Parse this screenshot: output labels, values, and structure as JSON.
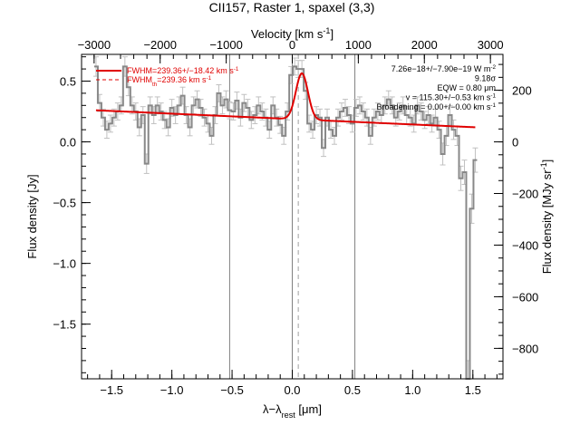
{
  "chart_data": {
    "type": "line",
    "title": "CII157, Raster 1, spaxel (3,3)",
    "xlabel": "λ−λ_rest [μm]",
    "ylabel": "Flux density [Jy]",
    "x2label": "Velocity [km s^-1]",
    "y2label": "Flux density [MJy sr^-1]",
    "xlim": [
      -1.75,
      1.75
    ],
    "ylim": [
      -1.95,
      0.72
    ],
    "x2lim": [
      -3190,
      3190
    ],
    "y2lim": [
      -918,
      339
    ],
    "xticks": [
      -1.5,
      -1.0,
      -0.5,
      0.0,
      0.5,
      1.0,
      1.5
    ],
    "xtick_labels": [
      "−1.5",
      "−1.0",
      "−0.5",
      "0.0",
      "0.5",
      "1.0",
      "1.5"
    ],
    "yticks": [
      -1.5,
      -1.0,
      -0.5,
      0.0,
      0.5
    ],
    "ytick_labels": [
      "−1.5",
      "−1.0",
      "−0.5",
      "0.0",
      "0.5"
    ],
    "x2ticks": [
      -3000,
      -2000,
      -1000,
      0,
      1000,
      2000,
      3000
    ],
    "x2tick_labels": [
      "−3000",
      "−2000",
      "−1000",
      "0",
      "1000",
      "2000",
      "3000"
    ],
    "y2ticks": [
      -800,
      -600,
      -400,
      -200,
      0,
      200
    ],
    "y2tick_labels": [
      "−800",
      "−600",
      "−400",
      "−200",
      "0",
      "200"
    ],
    "vlines": [
      -0.52,
      0.0,
      0.52
    ],
    "dashed_vline": 0.05,
    "series": [
      {
        "name": "Spectrum",
        "style": "step",
        "color": "#888888",
        "x": [
          -1.63,
          -1.6,
          -1.57,
          -1.54,
          -1.51,
          -1.48,
          -1.45,
          -1.42,
          -1.39,
          -1.36,
          -1.33,
          -1.3,
          -1.27,
          -1.24,
          -1.21,
          -1.18,
          -1.15,
          -1.12,
          -1.09,
          -1.06,
          -1.03,
          -1.0,
          -0.97,
          -0.94,
          -0.91,
          -0.88,
          -0.85,
          -0.82,
          -0.79,
          -0.76,
          -0.73,
          -0.7,
          -0.67,
          -0.64,
          -0.61,
          -0.58,
          -0.55,
          -0.52,
          -0.49,
          -0.46,
          -0.43,
          -0.4,
          -0.37,
          -0.34,
          -0.31,
          -0.28,
          -0.25,
          -0.22,
          -0.19,
          -0.16,
          -0.13,
          -0.1,
          -0.07,
          -0.04,
          -0.01,
          0.02,
          0.05,
          0.08,
          0.11,
          0.14,
          0.17,
          0.2,
          0.23,
          0.26,
          0.29,
          0.32,
          0.35,
          0.38,
          0.41,
          0.44,
          0.47,
          0.5,
          0.53,
          0.56,
          0.59,
          0.62,
          0.65,
          0.68,
          0.71,
          0.74,
          0.77,
          0.8,
          0.83,
          0.86,
          0.89,
          0.92,
          0.95,
          0.98,
          1.01,
          1.04,
          1.07,
          1.1,
          1.13,
          1.16,
          1.19,
          1.22,
          1.25,
          1.28,
          1.31,
          1.34,
          1.37,
          1.4,
          1.43,
          1.46,
          1.49,
          1.52
        ],
        "values": [
          0.62,
          0.32,
          0.2,
          0.1,
          0.15,
          0.2,
          0.25,
          0.3,
          0.62,
          0.45,
          0.3,
          0.25,
          0.12,
          0.22,
          -0.18,
          0.3,
          0.22,
          0.3,
          0.25,
          0.18,
          0.12,
          0.28,
          0.22,
          0.3,
          0.38,
          0.22,
          0.12,
          0.3,
          0.35,
          0.28,
          0.2,
          0.15,
          0.05,
          0.22,
          0.4,
          0.3,
          0.35,
          0.26,
          0.25,
          0.34,
          0.2,
          0.32,
          0.28,
          0.18,
          0.22,
          0.3,
          0.25,
          0.2,
          0.1,
          0.3,
          0.2,
          0.14,
          0.05,
          0.25,
          0.55,
          0.62,
          0.6,
          0.6,
          0.42,
          0.15,
          0.1,
          0.22,
          0.2,
          -0.05,
          0.2,
          0.1,
          0.05,
          0.2,
          0.25,
          0.28,
          0.22,
          0.15,
          0.28,
          0.3,
          0.25,
          0.2,
          0.05,
          0.2,
          0.25,
          0.22,
          0.3,
          0.35,
          0.3,
          0.2,
          0.25,
          0.3,
          0.22,
          0.2,
          0.15,
          0.3,
          0.25,
          0.18,
          0.22,
          0.15,
          0.2,
          0.1,
          -0.1,
          0.05,
          0.22,
          0.1,
          0.05,
          -0.3,
          -0.25,
          -1.95,
          -0.55,
          -0.15
        ],
        "errors": [
          0.08,
          0.07,
          0.07,
          0.07,
          0.07,
          0.07,
          0.07,
          0.07,
          0.08,
          0.07,
          0.07,
          0.07,
          0.07,
          0.07,
          0.08,
          0.07,
          0.07,
          0.07,
          0.07,
          0.07,
          0.07,
          0.07,
          0.07,
          0.07,
          0.07,
          0.07,
          0.07,
          0.07,
          0.07,
          0.07,
          0.07,
          0.07,
          0.07,
          0.07,
          0.07,
          0.07,
          0.07,
          0.07,
          0.07,
          0.07,
          0.07,
          0.07,
          0.07,
          0.07,
          0.07,
          0.07,
          0.07,
          0.07,
          0.07,
          0.07,
          0.07,
          0.07,
          0.07,
          0.07,
          0.07,
          0.07,
          0.07,
          0.07,
          0.07,
          0.07,
          0.07,
          0.07,
          0.07,
          0.07,
          0.07,
          0.07,
          0.07,
          0.07,
          0.07,
          0.07,
          0.07,
          0.07,
          0.07,
          0.07,
          0.07,
          0.07,
          0.07,
          0.07,
          0.07,
          0.07,
          0.07,
          0.07,
          0.07,
          0.07,
          0.07,
          0.07,
          0.07,
          0.07,
          0.07,
          0.07,
          0.07,
          0.07,
          0.07,
          0.07,
          0.07,
          0.07,
          0.09,
          0.08,
          0.08,
          0.08,
          0.08,
          0.1,
          0.1,
          0.15,
          0.12,
          0.1
        ]
      },
      {
        "name": "FWHM=239.36+/−18.42 km s^-1",
        "style": "fit",
        "color": "#e00000",
        "baseline_start": 0.26,
        "baseline_end": 0.12,
        "peak_center": 0.08,
        "peak_amplitude": 0.38,
        "peak_sigma": 0.05
      },
      {
        "name": "FWHM_th=239.36 km s^-1",
        "style": "dashed",
        "color": "#e00000"
      }
    ],
    "legend": {
      "position": "top-left",
      "entries": [
        "FWHM=239.36+/−18.42 km s^-1",
        "FWHM_th=239.36 km s^-1"
      ]
    },
    "annotations": [
      "7.26e−18+/−7.90e−19 W m^-2",
      "9.18σ",
      "EQW = 0.80 μm",
      "v = 115.30+/−0.53 km s^-1",
      "Broadening = 0.00+/−0.00 km s^-1"
    ],
    "grid": false
  }
}
